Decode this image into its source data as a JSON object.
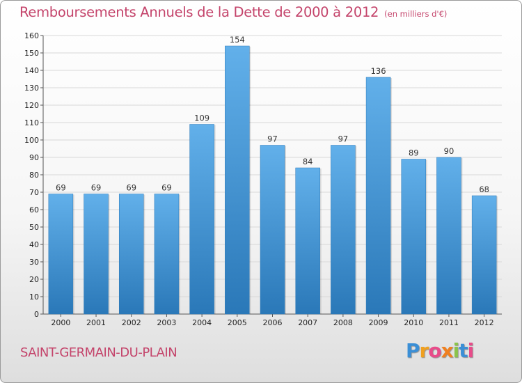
{
  "header": {
    "title": "Remboursements Annuels de la Dette de 2000 à 2012",
    "unit": "(en milliers d'€)"
  },
  "footer": {
    "commune": "SAINT-GERMAIN-DU-PLAIN",
    "logo_letters": [
      "P",
      "r",
      "o",
      "x",
      "i",
      "t",
      "i"
    ],
    "logo_colors": [
      "#3b8fd6",
      "#f0a020",
      "#e84c8a",
      "#f08020",
      "#8bc34a",
      "#3b8fd6",
      "#e84c8a"
    ]
  },
  "chart_data": {
    "type": "bar",
    "categories": [
      "2000",
      "2001",
      "2002",
      "2003",
      "2004",
      "2005",
      "2006",
      "2007",
      "2008",
      "2009",
      "2010",
      "2011",
      "2012"
    ],
    "values": [
      69,
      69,
      69,
      69,
      109,
      154,
      97,
      84,
      97,
      136,
      89,
      90,
      68
    ],
    "title": "Remboursements Annuels de la Dette de 2000 à 2012",
    "ylim": [
      0,
      160
    ],
    "yticks": [
      0,
      10,
      20,
      30,
      40,
      50,
      60,
      70,
      80,
      90,
      100,
      110,
      120,
      130,
      140,
      150,
      160
    ],
    "grid": true,
    "bar_color_top": "#62b0ea",
    "bar_color_bottom": "#2a78b8"
  }
}
